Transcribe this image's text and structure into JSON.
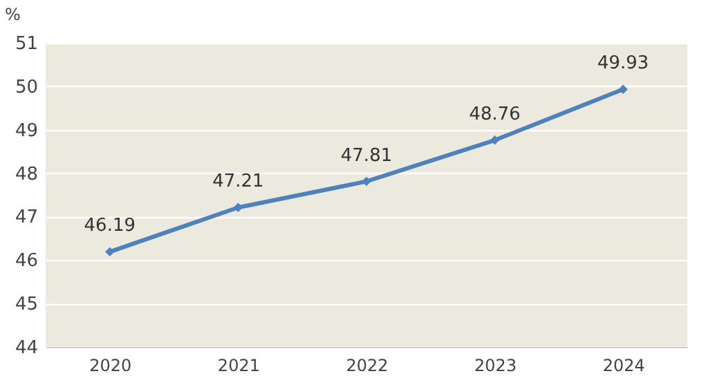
{
  "chart_data": {
    "type": "line",
    "ylabel": "%",
    "categories": [
      "2020",
      "2021",
      "2022",
      "2023",
      "2024"
    ],
    "series": [
      {
        "color": "#4f81bd",
        "values": [
          46.19,
          47.21,
          47.81,
          48.76,
          49.93
        ]
      }
    ],
    "ylim": [
      44,
      51
    ],
    "yticks": [
      44,
      45,
      46,
      47,
      48,
      49,
      50,
      51
    ],
    "grid": "y",
    "marker": "diamond",
    "line_style": "solid",
    "data_labels": true
  }
}
